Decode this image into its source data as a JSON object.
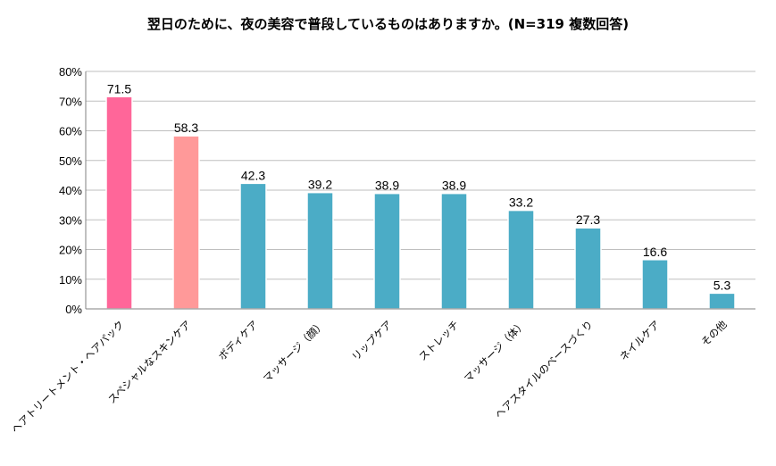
{
  "chart_data": {
    "type": "bar",
    "title": "翌日のために、夜の美容で普段しているものはありますか。(N=319 複数回答)",
    "categories": [
      "ヘアトリートメント・ヘアパック",
      "スペシャルなスキンケア",
      "ボディケア",
      "マッサージ（顔）",
      "リップケア",
      "ストレッチ",
      "マッサージ（体）",
      "ヘアスタイルのベースづくり",
      "ネイルケア",
      "その他"
    ],
    "values": [
      71.5,
      58.3,
      42.3,
      39.2,
      38.9,
      38.9,
      33.2,
      27.3,
      16.6,
      5.3
    ],
    "value_labels": [
      "71.5",
      "58.3",
      "42.3",
      "39.2",
      "38.9",
      "38.9",
      "33.2",
      "27.3",
      "16.6",
      "5.3"
    ],
    "ylim": [
      0,
      80
    ],
    "yticks": [
      "0%",
      "10%",
      "20%",
      "30%",
      "40%",
      "50%",
      "60%",
      "70%",
      "80%"
    ],
    "grid": true,
    "colors": {
      "bars": [
        "#FF6699",
        "#FF9999",
        "#4BACC6",
        "#4BACC6",
        "#4BACC6",
        "#4BACC6",
        "#4BACC6",
        "#4BACC6",
        "#4BACC6",
        "#4BACC6"
      ],
      "gridline": "#BFBFBF",
      "axis": "#808080"
    }
  }
}
